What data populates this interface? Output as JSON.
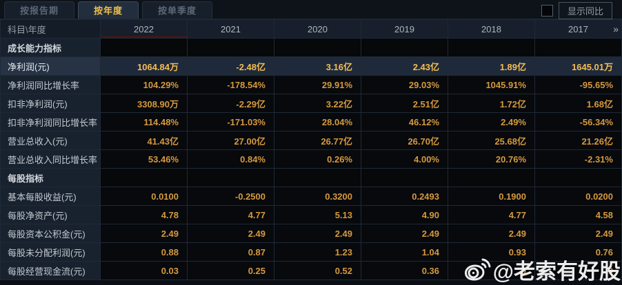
{
  "tabs": [
    {
      "label": "按报告期",
      "active": false
    },
    {
      "label": "按年度",
      "active": true
    },
    {
      "label": "按单季度",
      "active": false
    }
  ],
  "controls": {
    "show_yoy_label": "显示同比",
    "checkbox_checked": false
  },
  "table": {
    "corner_label": "科目\\年度",
    "years": [
      "2022",
      "2021",
      "2020",
      "2019",
      "2018",
      "2017"
    ],
    "more_icon": "»",
    "rows": [
      {
        "type": "section",
        "label": "成长能力指标"
      },
      {
        "type": "data",
        "label": "净利润(元)",
        "highlight": true,
        "values": [
          "1064.84万",
          "-2.48亿",
          "3.16亿",
          "2.43亿",
          "1.89亿",
          "1645.01万"
        ]
      },
      {
        "type": "data",
        "label": "净利润同比增长率",
        "values": [
          "104.29%",
          "-178.54%",
          "29.91%",
          "29.03%",
          "1045.91%",
          "-95.65%"
        ]
      },
      {
        "type": "data",
        "label": "扣非净利润(元)",
        "values": [
          "3308.90万",
          "-2.29亿",
          "3.22亿",
          "2.51亿",
          "1.72亿",
          "1.68亿"
        ]
      },
      {
        "type": "data",
        "label": "扣非净利润同比增长率",
        "values": [
          "114.48%",
          "-171.03%",
          "28.04%",
          "46.12%",
          "2.49%",
          "-56.34%"
        ]
      },
      {
        "type": "data",
        "label": "营业总收入(元)",
        "values": [
          "41.43亿",
          "27.00亿",
          "26.77亿",
          "26.70亿",
          "25.68亿",
          "21.26亿"
        ]
      },
      {
        "type": "data",
        "label": "营业总收入同比增长率",
        "values": [
          "53.46%",
          "0.84%",
          "0.26%",
          "4.00%",
          "20.76%",
          "-2.31%"
        ]
      },
      {
        "type": "section",
        "label": "每股指标"
      },
      {
        "type": "data",
        "label": "基本每股收益(元)",
        "values": [
          "0.0100",
          "-0.2500",
          "0.3200",
          "0.2493",
          "0.1900",
          "0.0200"
        ]
      },
      {
        "type": "data",
        "label": "每股净资产(元)",
        "values": [
          "4.78",
          "4.77",
          "5.13",
          "4.90",
          "4.77",
          "4.58"
        ]
      },
      {
        "type": "data",
        "label": "每股资本公积金(元)",
        "values": [
          "2.49",
          "2.49",
          "2.49",
          "2.49",
          "2.49",
          "2.49"
        ]
      },
      {
        "type": "data",
        "label": "每股未分配利润(元)",
        "values": [
          "0.88",
          "0.87",
          "1.23",
          "1.04",
          "0.93",
          "0.76"
        ]
      },
      {
        "type": "data",
        "label": "每股经营现金流(元)",
        "values": [
          "0.03",
          "0.25",
          "0.52",
          "0.36",
          "0",
          "9"
        ]
      }
    ]
  },
  "watermark": {
    "text": "@老索有好股",
    "icon": "weibo-icon"
  },
  "colors": {
    "value_orange": "#d6993f",
    "highlight_yellow": "#f5bd53",
    "active_tab_yellow": "#f0bf4a",
    "row_highlight_bg": "#1e2a3a",
    "label_col_bg": "#18222e",
    "header_bg": "#161f2b"
  }
}
